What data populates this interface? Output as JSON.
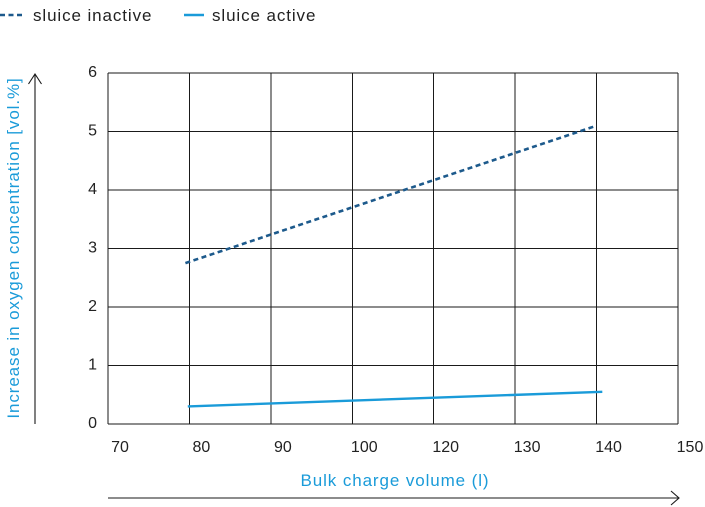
{
  "chart_data": {
    "type": "line",
    "xlabel": "Bulk charge volume (l)",
    "ylabel": "Increase in oxygen concentration [vol.%]",
    "x_ticks": [
      70,
      80,
      90,
      100,
      120,
      130,
      140,
      150
    ],
    "y_ticks": [
      0,
      1,
      2,
      3,
      4,
      5,
      6
    ],
    "xlim": [
      70,
      150
    ],
    "ylim": [
      0,
      6
    ],
    "grid": true,
    "legend_position": "top-left",
    "axis_title_color": "#1a9bd9",
    "series": [
      {
        "name": "sluice inactive",
        "color": "#1d5a8c",
        "dashed": true,
        "x": [
          79.5,
          140
        ],
        "y": [
          2.75,
          5.1
        ]
      },
      {
        "name": "sluice active",
        "color": "#1a9bd9",
        "dashed": false,
        "x": [
          79.8,
          140.7
        ],
        "y": [
          0.3,
          0.55
        ]
      }
    ]
  }
}
